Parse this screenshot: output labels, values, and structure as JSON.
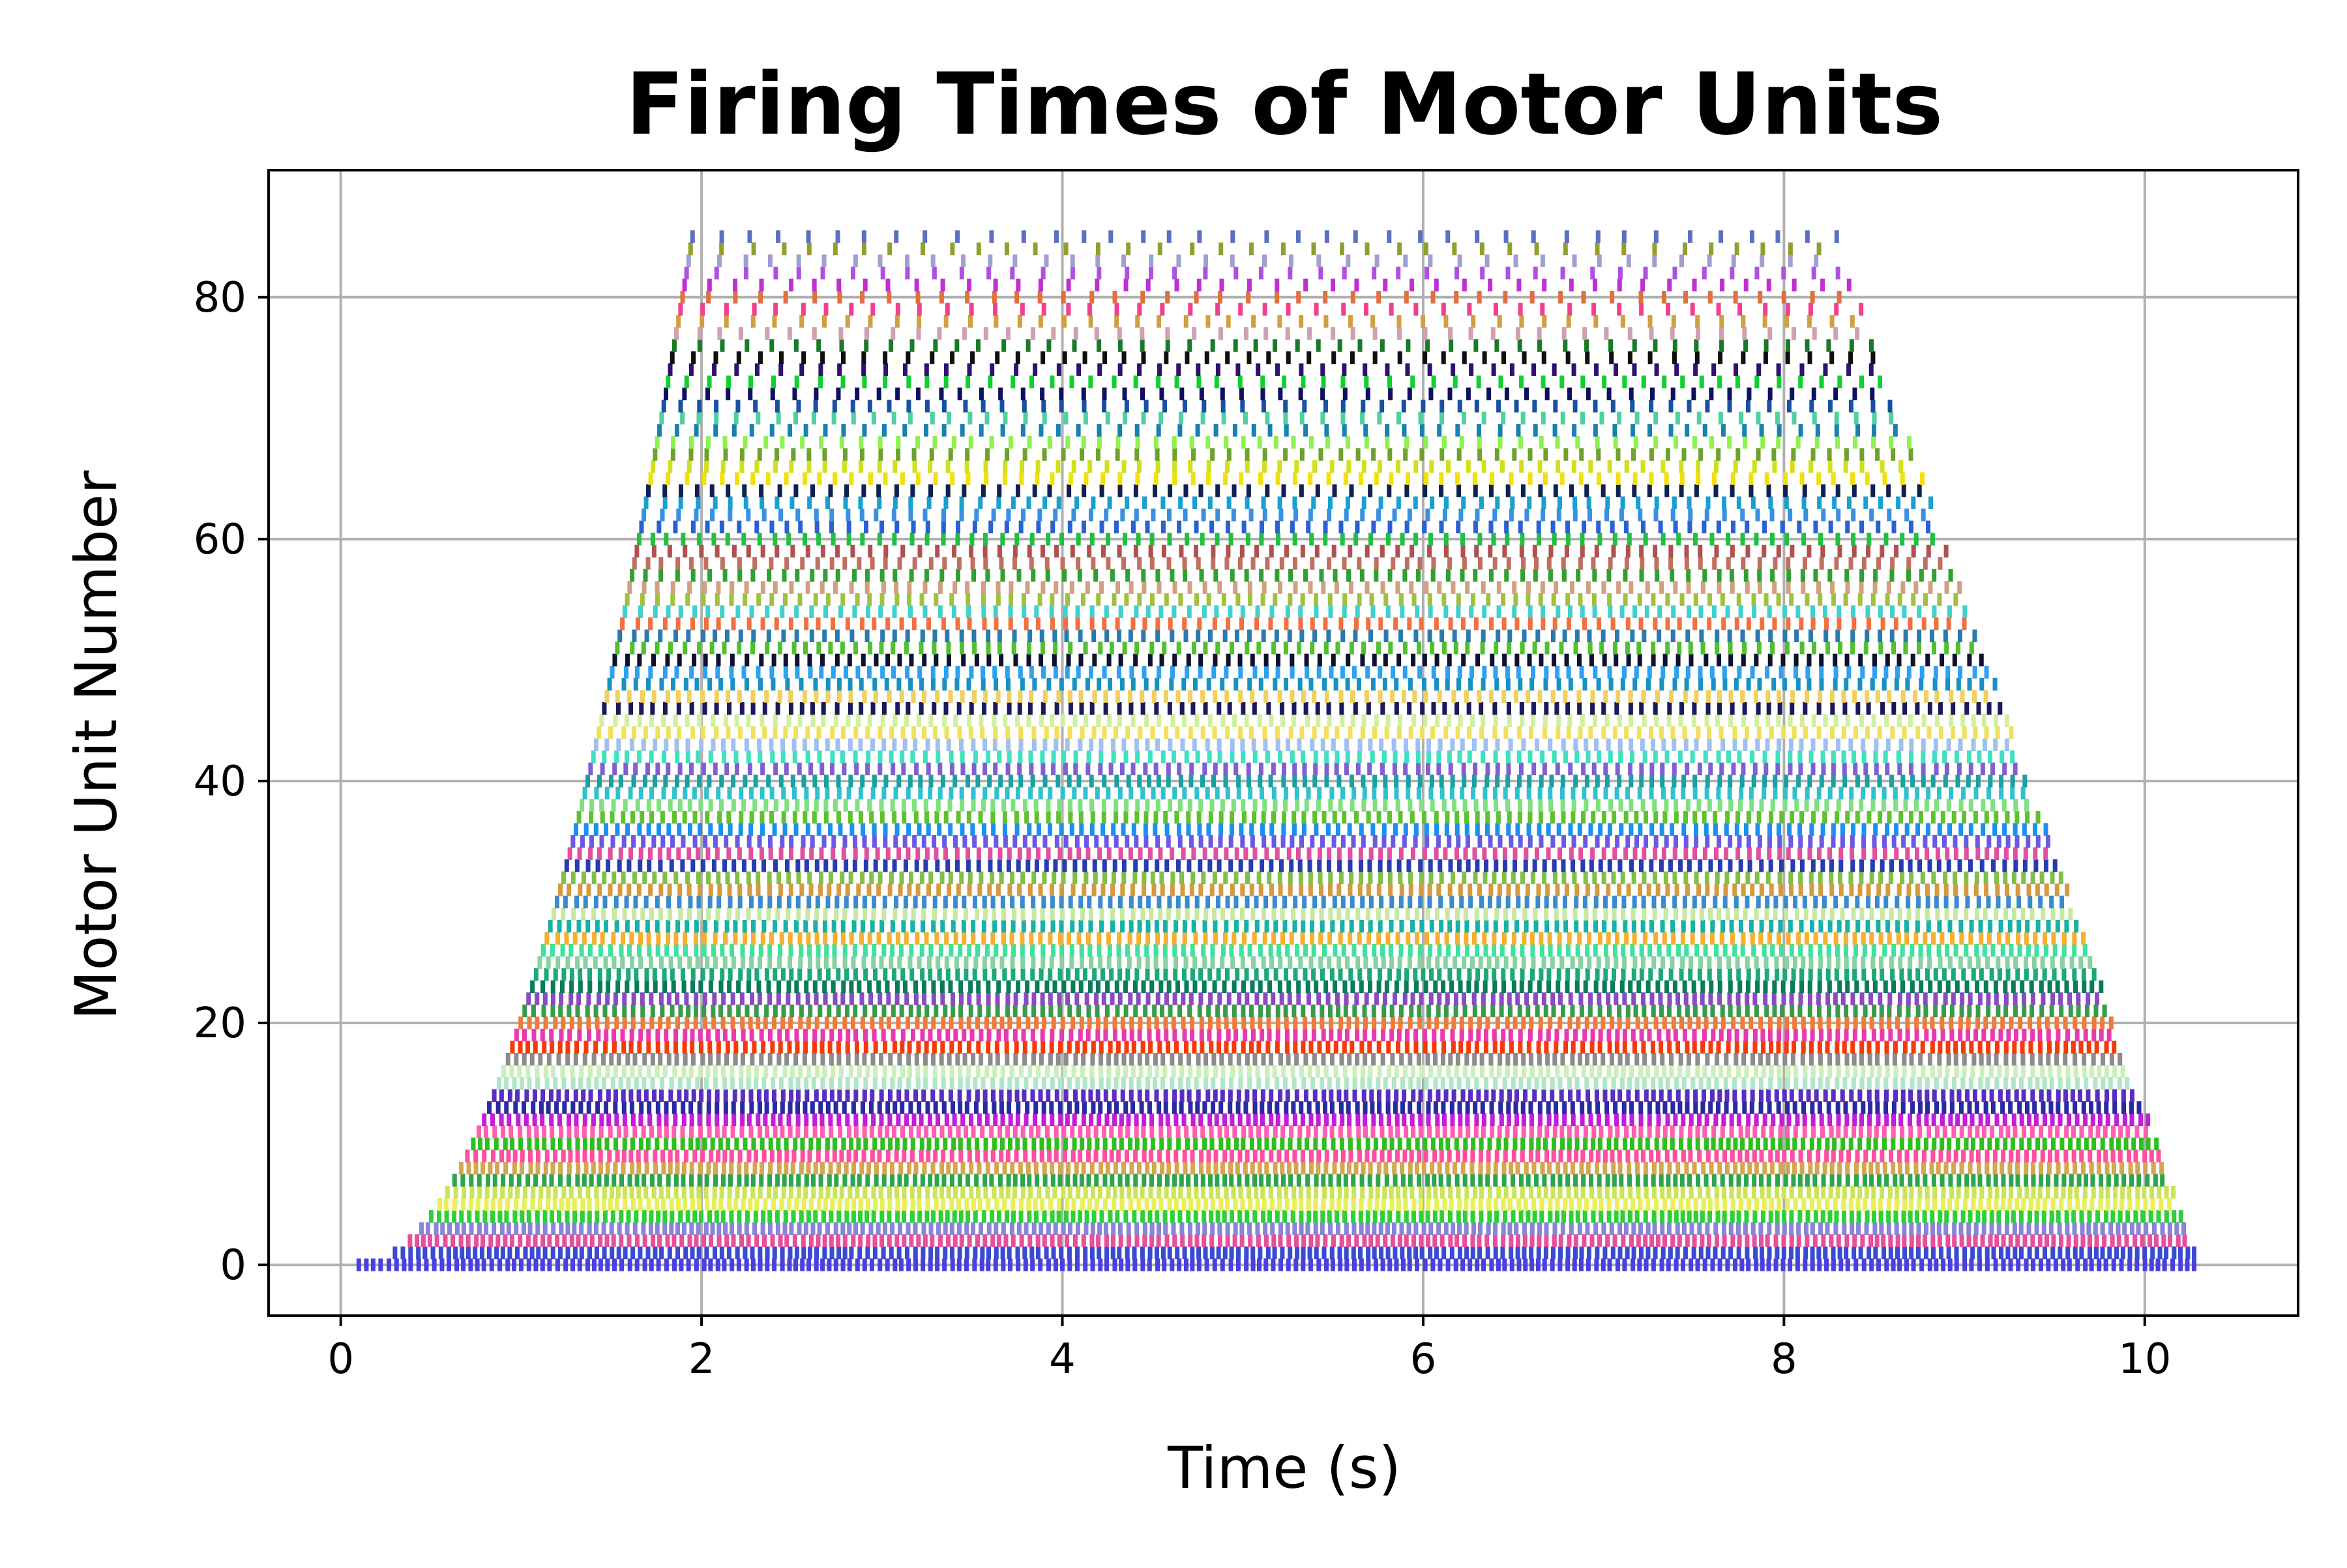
{
  "chart_data": {
    "type": "raster",
    "title": "Firing Times of Motor Units",
    "xlabel": "Time (s)",
    "ylabel": "Motor Unit Number",
    "xlim": [
      -0.4,
      10.85
    ],
    "ylim": [
      -4.2,
      90.5
    ],
    "xticks": [
      0,
      2,
      4,
      6,
      8,
      10
    ],
    "yticks": [
      0,
      20,
      40,
      60,
      80
    ],
    "grid": true,
    "legend": "none",
    "n_units": 86,
    "recruitment": {
      "description": "unit n begins firing at onset time t = 0.1 + 1.85*sqrt(n/85); firing continues until the ramp-down end time",
      "onset_at_unit_0": 0.1,
      "onset_at_unit_85": 1.95
    },
    "derecruitment": {
      "end_at_unit_0": 10.3,
      "end_at_unit_85": 8.3
    },
    "firing_rate_hz": {
      "unit_0": 25,
      "unit_85": 6
    },
    "unit_colors": [
      "#4b3fe0",
      "#3a4bd1",
      "#e84f9b",
      "#8a83d6",
      "#2fcf3a",
      "#e6f05a",
      "#cce35a",
      "#2ea44f",
      "#d4a64f",
      "#ff4fa0",
      "#2cc01c",
      "#ff5fb0",
      "#c01ed8",
      "#2a2aa0",
      "#5a2fc0",
      "#b0e6c8",
      "#c8f0b8",
      "#8c8c8c",
      "#f53a0a",
      "#e83ab0",
      "#f07a3a",
      "#3a9a4a",
      "#8a4ac0",
      "#0a7a5a",
      "#1ea87a",
      "#8ad0a0",
      "#40e0a0",
      "#f5b030",
      "#18b0a8",
      "#c8e8a0",
      "#3a8ad0",
      "#d49a40",
      "#80c048",
      "#2a3ab0",
      "#e050a0",
      "#6a5ae0",
      "#1a90f0",
      "#60c030",
      "#80e080",
      "#30c0d0",
      "#1aa0a0",
      "#8060d0",
      "#40e0c0",
      "#a0c0f0",
      "#f0e060",
      "#d0f0a0",
      "#1a1a5a",
      "#f0d060",
      "#1a90c0",
      "#30a0f0",
      "#101030",
      "#50c030",
      "#2a7ab0",
      "#f07040",
      "#40d0d0",
      "#a0c040",
      "#d0a080",
      "#30a030",
      "#c07060",
      "#b05050",
      "#20c040",
      "#2a60d0",
      "#3a90e0",
      "#18a0d0",
      "#102050",
      "#f0e010",
      "#d0e020",
      "#70a030",
      "#90f050",
      "#1a80b0",
      "#50d0a0",
      "#1a50a0",
      "#101060",
      "#10d030",
      "#301070",
      "#101010",
      "#1a7a2a",
      "#d0a0b0",
      "#d0a040",
      "#f04090",
      "#e07040",
      "#c030d0",
      "#b050e0",
      "#a0a0d0",
      "#90a030",
      "#5a70c0"
    ]
  }
}
